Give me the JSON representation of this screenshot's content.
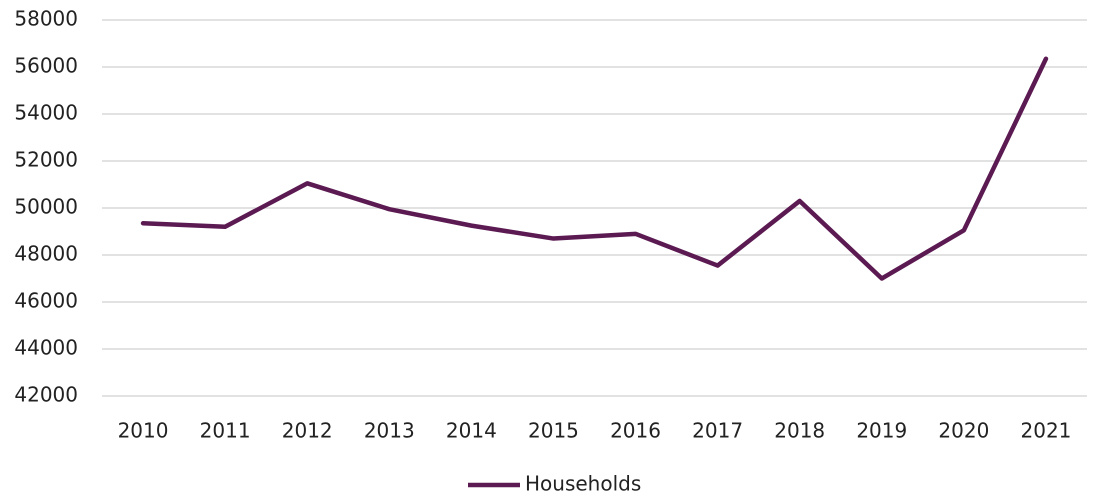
{
  "chart_data": {
    "type": "line",
    "categories": [
      "2010",
      "2011",
      "2012",
      "2013",
      "2014",
      "2015",
      "2016",
      "2017",
      "2018",
      "2019",
      "2020",
      "2021"
    ],
    "series": [
      {
        "name": "Households",
        "color": "#5c1a52",
        "values": [
          49350,
          49200,
          51050,
          49950,
          49250,
          48700,
          48900,
          47550,
          50300,
          47000,
          49050,
          56350
        ]
      }
    ],
    "ylim": [
      42000,
      58000
    ],
    "yticks": [
      42000,
      44000,
      46000,
      48000,
      50000,
      52000,
      54000,
      56000,
      58000
    ],
    "grid": true,
    "legend": "bottom"
  }
}
